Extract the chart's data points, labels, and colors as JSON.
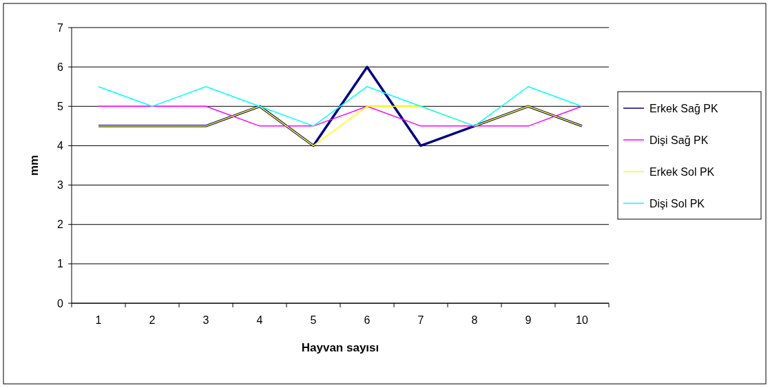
{
  "chart_data": {
    "type": "line",
    "xlabel": "Hayvan sayısı",
    "ylabel": "mm",
    "categories": [
      "1",
      "2",
      "3",
      "4",
      "5",
      "6",
      "7",
      "8",
      "9",
      "10"
    ],
    "series": [
      {
        "name": "Erkek Sağ PK",
        "color": "#000080",
        "values": [
          4.5,
          4.5,
          4.5,
          5,
          4,
          6,
          4,
          4.5,
          5,
          4.5
        ]
      },
      {
        "name": "Dişi Sağ PK",
        "color": "#ff00ff",
        "values": [
          5,
          5,
          5,
          4.5,
          4.5,
          5,
          4.5,
          4.5,
          4.5,
          5
        ]
      },
      {
        "name": "Erkek Sol PK",
        "color": "#ffff00",
        "values": [
          4.5,
          4.5,
          4.5,
          5,
          4,
          5,
          5,
          4.5,
          5,
          4.5
        ]
      },
      {
        "name": "Dişi Sol PK",
        "color": "#00ffff",
        "values": [
          5.5,
          5,
          5.5,
          5,
          4.5,
          5.5,
          5,
          4.5,
          5.5,
          5
        ]
      }
    ],
    "ylim": [
      0,
      7
    ],
    "yticks": [
      0,
      1,
      2,
      3,
      4,
      5,
      6,
      7
    ],
    "grid": "y",
    "legend": "right",
    "marker": "none",
    "line_style": "solid"
  }
}
